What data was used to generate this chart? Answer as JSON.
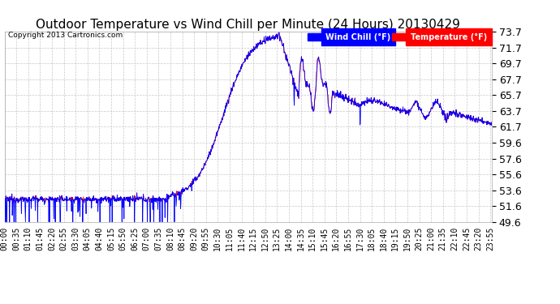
{
  "title": "Outdoor Temperature vs Wind Chill per Minute (24 Hours) 20130429",
  "copyright": "Copyright 2013 Cartronics.com",
  "legend_wind_chill": "Wind Chill (°F)",
  "legend_temperature": "Temperature (°F)",
  "ylim": [
    49.6,
    73.7
  ],
  "yticks": [
    49.6,
    51.6,
    53.6,
    55.6,
    57.6,
    59.6,
    61.7,
    63.7,
    65.7,
    67.7,
    69.7,
    71.7,
    73.7
  ],
  "temp_color": "#ff0000",
  "wind_color": "#0000ff",
  "bg_color": "#ffffff",
  "grid_color": "#c8c8c8",
  "title_fontsize": 11,
  "tick_fontsize": 7,
  "ytick_fontsize": 9,
  "total_minutes": 1440
}
